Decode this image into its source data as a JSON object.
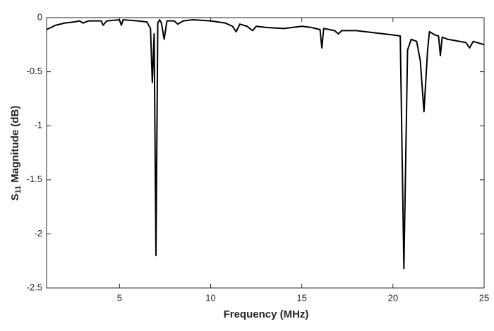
{
  "chart_data": {
    "type": "line",
    "xlabel": "Frequency (MHz)",
    "ylabel": {
      "symbol": "S",
      "subscript": "11",
      "text": "Magnitude (dB)"
    },
    "xlim": [
      1,
      25
    ],
    "xticks": [
      5,
      10,
      15,
      20,
      25
    ],
    "ylim": [
      -2.5,
      0
    ],
    "yticks": [
      0,
      -0.5,
      -1,
      -1.5,
      -2,
      -2.5
    ],
    "grid": false,
    "series": [
      {
        "color": "#000000",
        "x": [
          1,
          1.5,
          2,
          2.5,
          2.8,
          3,
          3.3,
          4,
          4.1,
          4.3,
          5,
          5.1,
          5.2,
          6,
          6.5,
          6.7,
          6.8,
          6.9,
          7.0,
          7.1,
          7.2,
          7.3,
          7.45,
          7.6,
          8,
          8.2,
          8.5,
          9,
          10,
          10.8,
          11.2,
          11.4,
          11.6,
          12,
          12.3,
          12.5,
          13,
          14,
          15,
          15.5,
          16,
          16.1,
          16.2,
          16.8,
          17,
          17.2,
          18,
          19,
          20,
          20.4,
          20.6,
          20.8,
          21,
          21.3,
          21.5,
          21.7,
          21.9,
          22,
          22.3,
          22.5,
          22.6,
          22.7,
          23,
          24,
          24.2,
          24.4,
          25
        ],
        "values": [
          -0.11,
          -0.07,
          -0.05,
          -0.04,
          -0.03,
          -0.05,
          -0.03,
          -0.03,
          -0.07,
          -0.03,
          -0.02,
          -0.07,
          -0.02,
          -0.03,
          -0.04,
          -0.1,
          -0.6,
          -0.15,
          -2.2,
          -0.05,
          -0.02,
          -0.05,
          -0.2,
          -0.03,
          -0.03,
          -0.06,
          -0.03,
          -0.02,
          -0.03,
          -0.05,
          -0.08,
          -0.13,
          -0.06,
          -0.08,
          -0.12,
          -0.08,
          -0.09,
          -0.1,
          -0.08,
          -0.09,
          -0.11,
          -0.28,
          -0.1,
          -0.12,
          -0.15,
          -0.12,
          -0.12,
          -0.14,
          -0.16,
          -0.17,
          -2.32,
          -0.3,
          -0.2,
          -0.22,
          -0.4,
          -0.87,
          -0.3,
          -0.13,
          -0.16,
          -0.17,
          -0.35,
          -0.18,
          -0.2,
          -0.23,
          -0.28,
          -0.22,
          -0.25
        ]
      }
    ]
  }
}
